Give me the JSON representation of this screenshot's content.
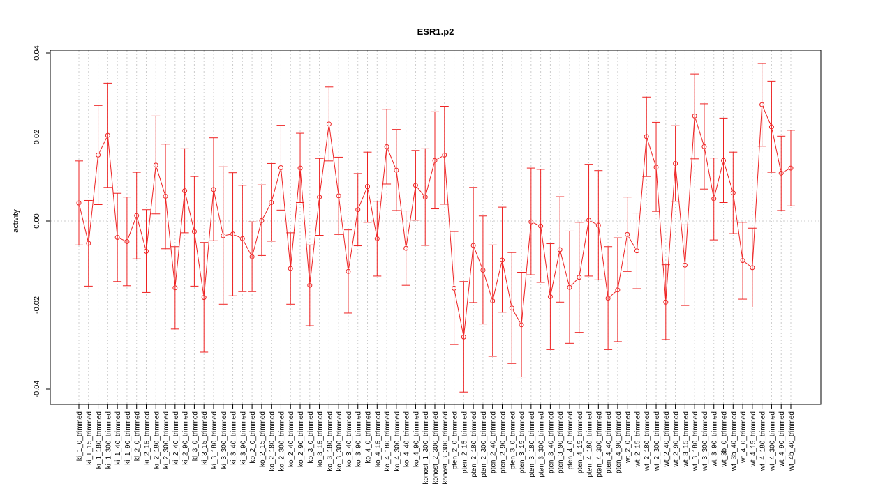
{
  "chart_data": {
    "type": "line",
    "title": "ESR1.p2",
    "xlabel": "",
    "ylabel": "activity",
    "ylim": [
      -0.044,
      0.04
    ],
    "yticks": [
      -0.04,
      -0.02,
      0.0,
      0.02,
      0.04
    ],
    "ytick_labels": [
      "-0.04",
      "-0.02",
      "0.00",
      "0.02",
      "0.04"
    ],
    "grid": true,
    "zero_line": true,
    "series_color": "#ee2222",
    "grid_color": "#cccccc",
    "categories": [
      "ki_1_0_trimmed",
      "ki_1_15_trimmed",
      "ki_1_180_trimmed",
      "ki_1_300_trimmed",
      "ki_1_40_trimmed",
      "ki_1_90_trimmed",
      "ki_2_0_trimmed",
      "ki_2_15_trimmed",
      "ki_2_180_trimmed",
      "ki_2_300_trimmed",
      "ki_2_40_trimmed",
      "ki_2_90_trimmed",
      "ki_3_0_trimmed",
      "ki_3_15_trimmed",
      "ki_3_180_trimmed",
      "ki_3_300_trimmed",
      "ki_3_40_trimmed",
      "ki_3_90_trimmed",
      "ko_2_0_trimmed",
      "ko_2_15_trimmed",
      "ko_2_180_trimmed",
      "ko_2_300_trimmed",
      "ko_2_40_trimmed",
      "ko_2_90_trimmed",
      "ko_3_0_trimmed",
      "ko_3_15_trimmed",
      "ko_3_180_trimmed",
      "ko_3_300_trimmed",
      "ko_3_40_trimmed",
      "ko_3_90_trimmed",
      "ko_4_0_trimmed",
      "ko_4_15_trimmed",
      "ko_4_180_trimmed",
      "ko_4_300_trimmed",
      "ko_4_40_trimmed",
      "ko_4_90_trimmed",
      "konost_1_300_trimmed",
      "konost_2_300_trimmed",
      "konost_3_300_trimmed",
      "pten_2_0_trimmed",
      "pten_2_15_trimmed",
      "pten_2_180_trimmed",
      "pten_2_300_trimmed",
      "pten_2_40_trimmed",
      "pten_2_90_trimmed",
      "pten_3_0_trimmed",
      "pten_3_15_trimmed",
      "pten_3_180_trimmed",
      "pten_3_300_trimmed",
      "pten_3_40_trimmed",
      "pten_3_90_trimmed",
      "pten_4_0_trimmed",
      "pten_4_15_trimmed",
      "pten_4_180_trimmed",
      "pten_4_300_trimmed",
      "pten_4_40_trimmed",
      "pten_4_90_trimmed",
      "wt_2_0_trimmed",
      "wt_2_15_trimmed",
      "wt_2_180_trimmed",
      "wt_2_300_trimmed",
      "wt_2_40_trimmed",
      "wt_2_90_trimmed",
      "wt_3_15_trimmed",
      "wt_3_180_trimmed",
      "wt_3_300_trimmed",
      "wt_3_90_trimmed",
      "wt_3b_0_trimmed",
      "wt_3b_40_trimmed",
      "wt_4_0_trimmed",
      "wt_4_15_trimmed",
      "wt_4_180_trimmed",
      "wt_4_300_trimmed",
      "wt_4_90_trimmed",
      "wt_4b_40_trimmed"
    ],
    "values": [
      0.0043,
      -0.0053,
      0.0157,
      0.0204,
      -0.0039,
      -0.0049,
      0.0013,
      -0.0072,
      0.0133,
      0.0059,
      -0.0159,
      0.0072,
      -0.0025,
      -0.0182,
      0.0075,
      -0.0035,
      -0.0031,
      -0.0042,
      -0.0085,
      0.0001,
      0.0044,
      0.0127,
      -0.0113,
      0.0126,
      -0.0153,
      0.0057,
      0.0231,
      0.006,
      -0.012,
      0.0027,
      0.0082,
      -0.0042,
      0.0177,
      0.0121,
      -0.0065,
      0.0085,
      0.0057,
      0.0144,
      0.0157,
      -0.016,
      -0.0276,
      -0.0058,
      -0.0117,
      -0.019,
      -0.0093,
      -0.0207,
      -0.0247,
      -0.0002,
      -0.0012,
      -0.018,
      -0.0068,
      -0.0158,
      -0.0134,
      0.0002,
      -0.001,
      -0.0184,
      -0.0164,
      -0.0032,
      -0.0071,
      0.0201,
      0.0128,
      -0.0193,
      0.0137,
      -0.0105,
      0.025,
      0.0177,
      0.0053,
      0.0144,
      0.0067,
      -0.0094,
      -0.0111,
      0.0277,
      0.0224,
      0.0114,
      0.0126
    ],
    "lower": [
      -0.0057,
      -0.0155,
      0.0039,
      0.008,
      -0.0144,
      -0.0154,
      -0.009,
      -0.017,
      0.0017,
      -0.0066,
      -0.0257,
      -0.0028,
      -0.0155,
      -0.0312,
      -0.0047,
      -0.0198,
      -0.0178,
      -0.0168,
      -0.0168,
      -0.0082,
      -0.0048,
      0.0026,
      -0.0198,
      0.0044,
      -0.0249,
      -0.0034,
      0.0143,
      -0.0032,
      -0.0219,
      -0.0059,
      -0.0003,
      -0.0131,
      0.0088,
      0.0025,
      -0.0153,
      0.0002,
      -0.0058,
      0.0029,
      0.004,
      -0.0294,
      -0.0407,
      -0.0194,
      -0.0245,
      -0.0322,
      -0.0217,
      -0.0339,
      -0.0371,
      -0.0128,
      -0.0146,
      -0.0306,
      -0.0193,
      -0.0291,
      -0.0265,
      -0.0131,
      -0.014,
      -0.0306,
      -0.0287,
      -0.012,
      -0.0161,
      0.0106,
      0.0023,
      -0.0282,
      0.0047,
      -0.0201,
      0.0148,
      0.0076,
      -0.0045,
      0.0044,
      -0.003,
      -0.0186,
      -0.0205,
      0.0178,
      0.0116,
      0.0025,
      0.0036
    ],
    "upper": [
      0.0143,
      0.0049,
      0.0275,
      0.0328,
      0.0066,
      0.0057,
      0.0116,
      0.0027,
      0.025,
      0.0183,
      -0.0061,
      0.0172,
      0.0106,
      -0.0051,
      0.0198,
      0.0129,
      0.0115,
      0.0085,
      -0.0002,
      0.0086,
      0.0137,
      0.0228,
      -0.0028,
      0.0209,
      -0.0057,
      0.0149,
      0.0319,
      0.0152,
      -0.0021,
      0.0113,
      0.0164,
      0.0047,
      0.0266,
      0.0218,
      0.0024,
      0.0168,
      0.0172,
      0.026,
      0.0273,
      -0.0025,
      -0.0144,
      0.008,
      0.0012,
      -0.0057,
      0.0033,
      -0.0075,
      -0.0122,
      0.0126,
      0.0123,
      -0.0054,
      0.0058,
      -0.0024,
      -0.0003,
      0.0135,
      0.012,
      -0.0061,
      -0.004,
      0.0057,
      0.0019,
      0.0295,
      0.0235,
      -0.0104,
      0.0227,
      -0.0009,
      0.035,
      0.0279,
      0.015,
      0.0245,
      0.0164,
      -0.0003,
      -0.0017,
      0.0375,
      0.0333,
      0.0202,
      0.0216
    ]
  }
}
